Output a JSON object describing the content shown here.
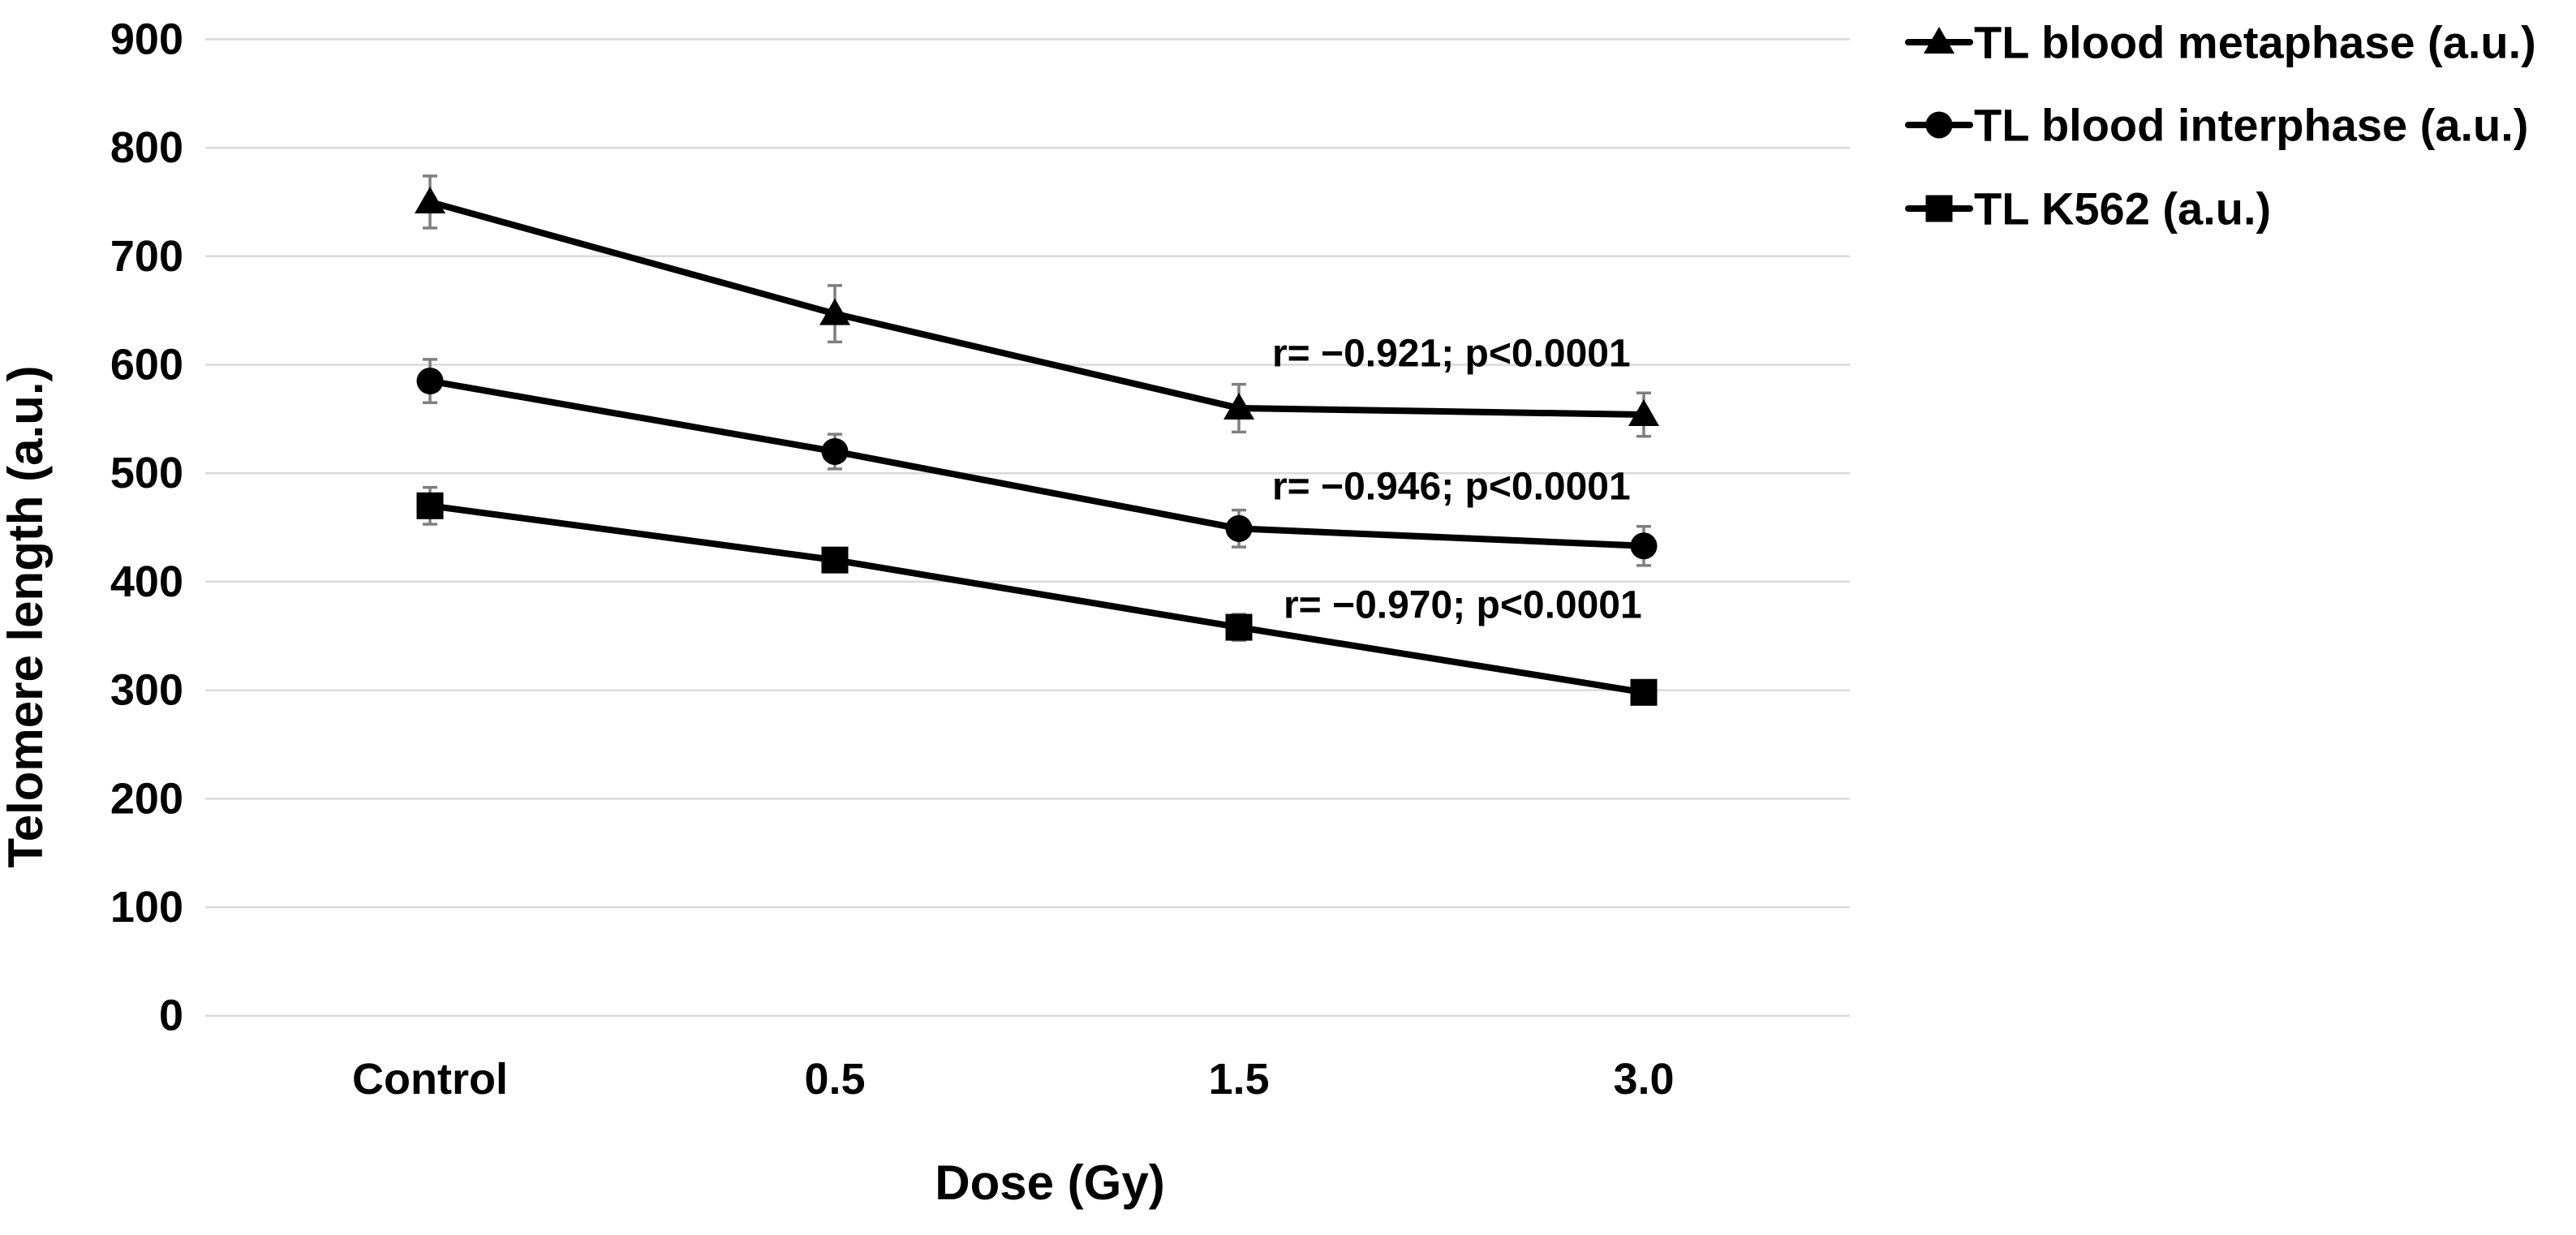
{
  "chart_data": {
    "type": "line",
    "title": "",
    "xlabel": "Dose (Gy)",
    "ylabel": "Telomere length (a.u.)",
    "categories": [
      "Control",
      "0.5",
      "1.5",
      "3.0"
    ],
    "ylim": [
      0,
      900
    ],
    "yticks": [
      900,
      800,
      700,
      600,
      500,
      400,
      300,
      200,
      100,
      0
    ],
    "grid": "horizontal-only",
    "legend_position": "top-right",
    "series": [
      {
        "name": "TL blood metaphase (a.u.)",
        "marker": "triangle",
        "values": [
          750,
          647,
          560,
          554
        ],
        "error": [
          24,
          26,
          22,
          20
        ]
      },
      {
        "name": "TL blood interphase (a.u.)",
        "marker": "circle",
        "values": [
          585,
          520,
          449,
          433
        ],
        "error": [
          20,
          16,
          17,
          18
        ]
      },
      {
        "name": "TL K562 (a.u.)",
        "marker": "square",
        "values": [
          470,
          420,
          358,
          298
        ],
        "error": [
          17,
          9,
          12,
          6
        ]
      }
    ],
    "annotations": [
      {
        "text": "r= −0.921; p<0.0001",
        "x": 1568,
        "y": 436
      },
      {
        "text": "r= −0.946; p<0.0001",
        "x": 1568,
        "y": 600
      },
      {
        "text": "r= −0.970; p<0.0001",
        "x": 1582,
        "y": 746
      }
    ],
    "colors": {
      "series": "#000000",
      "gridline": "#d9d9d9",
      "error_bar": "#7f7f7f",
      "background": "#ffffff",
      "text": "#000000"
    }
  }
}
